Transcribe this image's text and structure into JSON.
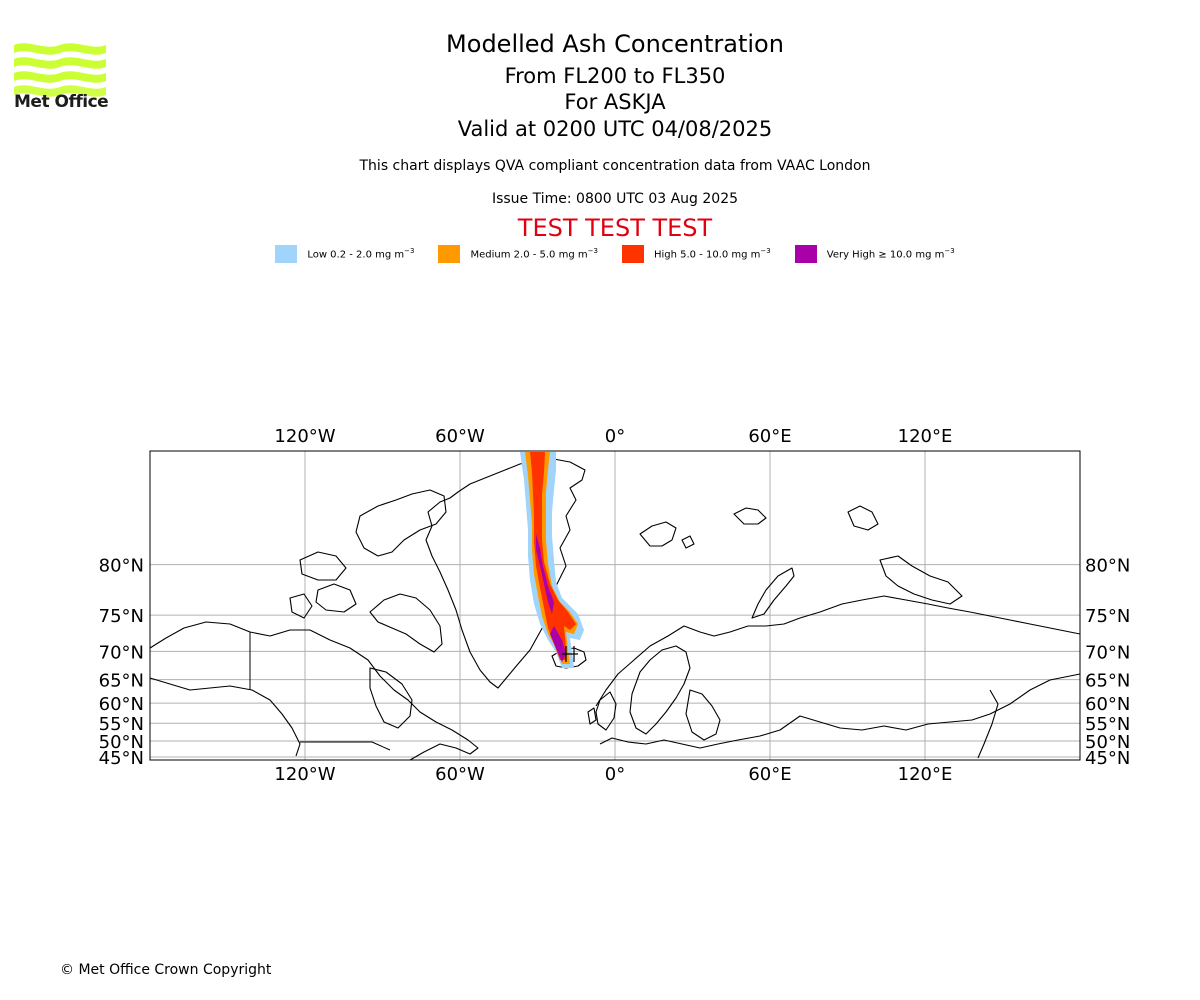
{
  "logo": {
    "text": "Met Office",
    "color": "#ccff33"
  },
  "header": {
    "title": "Modelled Ash Concentration",
    "level_range": "From FL200 to FL350",
    "volcano": "For ASKJA",
    "valid_time": "Valid at 0200 UTC 04/08/2025",
    "description": "This chart displays QVA compliant concentration data from VAAC London",
    "issue_time": "Issue Time: 0800 UTC 03 Aug 2025",
    "test_banner": "TEST TEST TEST",
    "test_color": "#e0000f"
  },
  "legend": [
    {
      "label": "Low 0.2 - 2.0 mg m",
      "color": "#a0d4fa"
    },
    {
      "label": "Medium 2.0 - 5.0 mg m",
      "color": "#ff9900"
    },
    {
      "label": "High 5.0 - 10.0 mg m",
      "color": "#ff3300"
    },
    {
      "label": "Very High  ≥  10.0 mg m",
      "color": "#aa00aa"
    }
  ],
  "legend_exponent": "−3",
  "map": {
    "lon_ticks": [
      "120°W",
      "60°W",
      "0°",
      "60°E",
      "120°E"
    ],
    "lat_ticks": [
      "80°N",
      "75°N",
      "70°N",
      "65°N",
      "60°N",
      "55°N",
      "50°N",
      "45°N"
    ],
    "lon_values": [
      -120,
      -60,
      0,
      60,
      120
    ],
    "lat_values": [
      80,
      75,
      70,
      65,
      60,
      55,
      50,
      45
    ],
    "extent": {
      "lon_min": -180,
      "lon_max": 180,
      "lat_min": 44,
      "lat_max": 86
    },
    "grid": true
  },
  "footer": {
    "copyright": "© Met Office Crown Copyright"
  }
}
